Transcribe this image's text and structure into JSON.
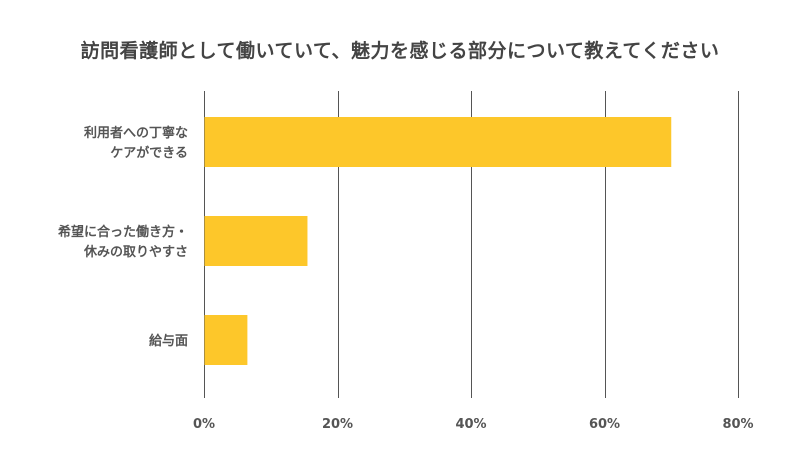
{
  "chart_data": {
    "type": "bar",
    "orientation": "horizontal",
    "title": "訪問看護師として働いていて、魅力を感じる部分について教えてください",
    "categories": [
      [
        "利用者への丁寧な",
        "ケアができる"
      ],
      [
        "希望に合った働き方・",
        "休みの取りやすさ"
      ],
      [
        "給与面"
      ]
    ],
    "values": [
      70,
      15.5,
      6.5
    ],
    "xlim": [
      0,
      80
    ],
    "xticks": [
      0,
      20,
      40,
      60,
      80
    ],
    "tick_suffix": "%",
    "grid": true,
    "bar_color": "#FDC72A",
    "grid_color": "#555555"
  }
}
